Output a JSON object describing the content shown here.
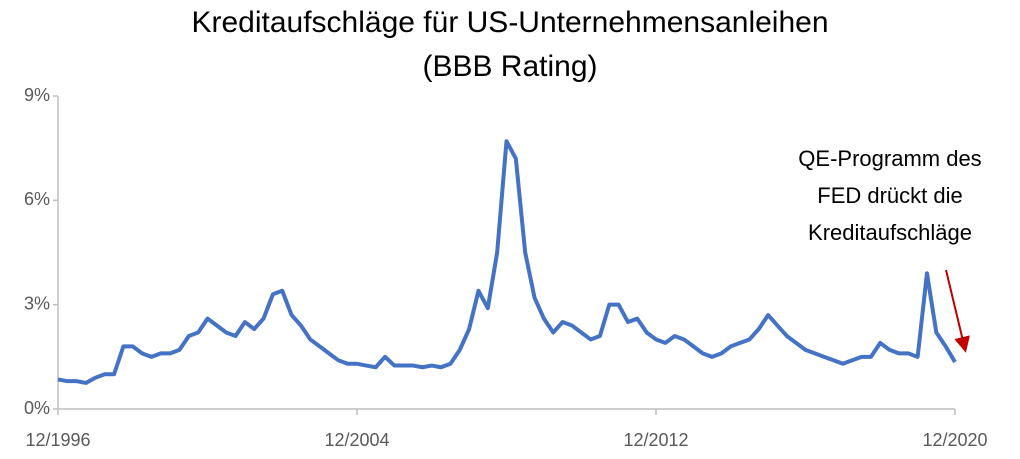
{
  "chart_data": {
    "type": "line",
    "title": "Kreditaufschläge für US-Unternehmensanleihen",
    "subtitle": "(BBB Rating)",
    "annotation": [
      "QE-Programm des",
      "FED drückt die",
      "Kreditaufschläge"
    ],
    "x": [
      "12/1996",
      "3/1997",
      "6/1997",
      "9/1997",
      "12/1997",
      "3/1998",
      "6/1998",
      "9/1998",
      "12/1998",
      "3/1999",
      "6/1999",
      "9/1999",
      "12/1999",
      "3/2000",
      "6/2000",
      "9/2000",
      "12/2000",
      "3/2001",
      "6/2001",
      "9/2001",
      "12/2001",
      "3/2002",
      "6/2002",
      "9/2002",
      "12/2002",
      "3/2003",
      "6/2003",
      "9/2003",
      "12/2003",
      "3/2004",
      "6/2004",
      "9/2004",
      "12/2004",
      "3/2005",
      "6/2005",
      "9/2005",
      "12/2005",
      "3/2006",
      "6/2006",
      "9/2006",
      "12/2006",
      "3/2007",
      "6/2007",
      "9/2007",
      "12/2007",
      "3/2008",
      "6/2008",
      "9/2008",
      "12/2008",
      "3/2009",
      "6/2009",
      "9/2009",
      "12/2009",
      "3/2010",
      "6/2010",
      "9/2010",
      "12/2010",
      "3/2011",
      "6/2011",
      "9/2011",
      "12/2011",
      "3/2012",
      "6/2012",
      "9/2012",
      "12/2012",
      "3/2013",
      "6/2013",
      "9/2013",
      "12/2013",
      "3/2014",
      "6/2014",
      "9/2014",
      "12/2014",
      "3/2015",
      "6/2015",
      "9/2015",
      "12/2015",
      "3/2016",
      "6/2016",
      "9/2016",
      "12/2016",
      "3/2017",
      "6/2017",
      "9/2017",
      "12/2017",
      "3/2018",
      "6/2018",
      "9/2018",
      "12/2018",
      "3/2019",
      "6/2019",
      "9/2019",
      "12/2019",
      "3/2020",
      "6/2020",
      "9/2020",
      "12/2020"
    ],
    "series": [
      {
        "name": "BBB",
        "color": "#4472c4",
        "values": [
          0.85,
          0.8,
          0.8,
          0.75,
          0.9,
          1.0,
          1.0,
          1.8,
          1.8,
          1.6,
          1.5,
          1.6,
          1.6,
          1.7,
          2.1,
          2.2,
          2.6,
          2.4,
          2.2,
          2.1,
          2.5,
          2.3,
          2.6,
          3.3,
          3.4,
          2.7,
          2.4,
          2.0,
          1.8,
          1.6,
          1.4,
          1.3,
          1.3,
          1.25,
          1.2,
          1.5,
          1.25,
          1.25,
          1.25,
          1.2,
          1.25,
          1.2,
          1.3,
          1.7,
          2.3,
          3.4,
          2.9,
          4.5,
          7.7,
          7.2,
          4.5,
          3.2,
          2.6,
          2.2,
          2.5,
          2.4,
          2.2,
          2.0,
          2.1,
          3.0,
          3.0,
          2.5,
          2.6,
          2.2,
          2.0,
          1.9,
          2.1,
          2.0,
          1.8,
          1.6,
          1.5,
          1.6,
          1.8,
          1.9,
          2.0,
          2.3,
          2.7,
          2.4,
          2.1,
          1.9,
          1.7,
          1.6,
          1.5,
          1.4,
          1.3,
          1.4,
          1.5,
          1.5,
          1.9,
          1.7,
          1.6,
          1.6,
          1.5,
          3.9,
          2.2,
          1.8,
          1.35
        ]
      }
    ],
    "xticks": [
      "12/1996",
      "12/2004",
      "12/2012",
      "12/2020"
    ],
    "ylim": [
      0,
      9
    ],
    "yticks": [
      {
        "value": 0,
        "label": "0%"
      },
      {
        "value": 3,
        "label": "3%"
      },
      {
        "value": 6,
        "label": "6%"
      },
      {
        "value": 9,
        "label": "9%"
      }
    ]
  }
}
